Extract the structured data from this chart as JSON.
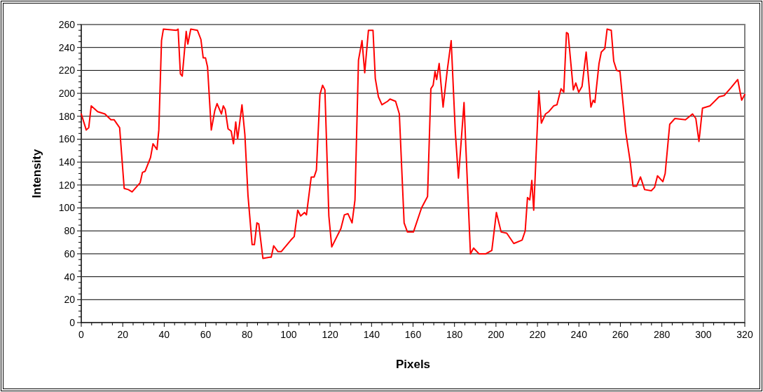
{
  "chart_data": {
    "type": "line",
    "xlabel": "Pixels",
    "ylabel": "Intensity",
    "series": [
      {
        "color": "#ff0000",
        "x": [
          0,
          2.4,
          3.6,
          4.8,
          7.9,
          11.4,
          14.3,
          15.8,
          18.5,
          20.7,
          22.7,
          24.5,
          28.4,
          29.5,
          30.8,
          33.4,
          34.6,
          36.5,
          37.4,
          38.7,
          39.6,
          45.9,
          46.7,
          47.8,
          48.7,
          50.6,
          51.4,
          52.8,
          56,
          57.7,
          58.8,
          59.9,
          60.9,
          62.7,
          64.4,
          65.5,
          67.6,
          68.5,
          69.4,
          70.8,
          72.3,
          73.4,
          74.5,
          75.4,
          77.5,
          78.9,
          80.4,
          82.4,
          83.5,
          84.7,
          85.6,
          87.6,
          90.9,
          91.6,
          92.8,
          94.8,
          96.5,
          101.1,
          102.7,
          104.4,
          105.8,
          107.7,
          108.6,
          110.9,
          112.3,
          113.4,
          115.1,
          116.4,
          117.5,
          119.4,
          120.8,
          125.2,
          126.9,
          128.6,
          130.6,
          132,
          133.7,
          135.4,
          136.7,
          138.5,
          140.7,
          141.8,
          143.3,
          145,
          147.7,
          148.9,
          151.6,
          153.4,
          155.7,
          157.3,
          160.2,
          164.1,
          167,
          168.6,
          169.7,
          170.6,
          171.4,
          172.6,
          174.5,
          176.5,
          178.4,
          180.4,
          181.9,
          183.3,
          184.6,
          185.5,
          187.7,
          189.2,
          191.8,
          195.1,
          198,
          200.2,
          202.5,
          205.2,
          208.6,
          212.6,
          214.1,
          215.2,
          216.3,
          217.3,
          218.2,
          220.7,
          221.9,
          223.9,
          225.5,
          227.8,
          229.4,
          231.4,
          232.7,
          234,
          234.8,
          237.3,
          238.5,
          239.9,
          241.5,
          243.5,
          245.8,
          246.9,
          247.7,
          249.7,
          250.8,
          252.5,
          253.6,
          255.6,
          256.8,
          258.2,
          259.8,
          262.6,
          264.7,
          266.1,
          267.8,
          269.7,
          271.7,
          274.9,
          276.5,
          277.9,
          280.5,
          281.6,
          283.8,
          286.3,
          291.4,
          294.8,
          296.4,
          297.9,
          299.6,
          303.2,
          307.6,
          310,
          313.4,
          316.6,
          318.5,
          320
        ],
        "values": [
          182,
          168,
          170,
          189,
          184,
          182,
          177,
          177,
          170,
          117,
          116,
          114,
          122,
          131,
          132,
          144,
          156,
          151,
          168,
          246,
          256,
          255,
          256,
          217,
          215,
          254,
          243,
          256,
          255,
          247,
          231,
          231,
          223,
          168,
          185,
          191,
          182,
          189,
          186,
          169,
          167,
          156,
          175,
          160,
          190,
          164,
          111,
          68,
          68,
          87,
          86,
          56,
          57,
          57,
          67,
          62,
          62,
          72,
          75,
          98,
          93,
          96,
          94,
          127,
          127,
          133,
          199,
          207,
          203,
          93,
          66,
          82,
          94,
          95,
          87,
          107,
          229,
          246,
          218,
          255,
          255,
          213,
          197,
          190,
          193,
          195,
          193,
          182,
          87,
          79,
          79,
          100,
          110,
          204,
          207,
          219,
          212,
          226,
          188,
          220,
          246,
          166,
          126,
          160,
          192,
          152,
          60,
          65,
          60,
          60,
          63,
          96,
          79,
          78,
          69,
          72,
          80,
          109,
          107,
          124,
          98,
          202,
          174,
          182,
          184,
          189,
          190,
          204,
          201,
          253,
          252,
          203,
          209,
          201,
          206,
          236,
          188,
          194,
          192,
          226,
          236,
          239,
          256,
          255,
          228,
          220,
          219,
          166,
          141,
          119,
          119,
          127,
          116,
          115,
          118,
          128,
          123,
          130,
          173,
          178,
          177,
          182,
          178,
          158,
          187,
          189,
          197,
          198,
          205,
          212,
          194,
          199
        ]
      }
    ],
    "xlim": [
      0,
      320
    ],
    "xticks": [
      0,
      {
        "value": 5,
        "label": null
      },
      {
        "value": 10,
        "label": null
      },
      {
        "value": 15,
        "label": null
      },
      20,
      {
        "value": 25,
        "label": null
      },
      {
        "value": 30,
        "label": null
      },
      {
        "value": 35,
        "label": null
      },
      40,
      {
        "value": 45,
        "label": null
      },
      {
        "value": 50,
        "label": null
      },
      {
        "value": 55,
        "label": null
      },
      60,
      {
        "value": 65,
        "label": null
      },
      {
        "value": 70,
        "label": null
      },
      {
        "value": 75,
        "label": null
      },
      80,
      {
        "value": 85,
        "label": null
      },
      {
        "value": 90,
        "label": null
      },
      {
        "value": 95,
        "label": null
      },
      100,
      {
        "value": 105,
        "label": null
      },
      {
        "value": 110,
        "label": null
      },
      {
        "value": 115,
        "label": null
      },
      120,
      {
        "value": 125,
        "label": null
      },
      {
        "value": 130,
        "label": null
      },
      {
        "value": 135,
        "label": null
      },
      140,
      {
        "value": 145,
        "label": null
      },
      {
        "value": 150,
        "label": null
      },
      {
        "value": 155,
        "label": null
      },
      160,
      {
        "value": 165,
        "label": null
      },
      {
        "value": 170,
        "label": null
      },
      {
        "value": 175,
        "label": null
      },
      180,
      {
        "value": 185,
        "label": null
      },
      {
        "value": 190,
        "label": null
      },
      {
        "value": 195,
        "label": null
      },
      200,
      {
        "value": 205,
        "label": null
      },
      {
        "value": 210,
        "label": null
      },
      {
        "value": 215,
        "label": null
      },
      220,
      {
        "value": 225,
        "label": null
      },
      {
        "value": 230,
        "label": null
      },
      {
        "value": 235,
        "label": null
      },
      240,
      {
        "value": 245,
        "label": null
      },
      {
        "value": 250,
        "label": null
      },
      {
        "value": 255,
        "label": null
      },
      260,
      {
        "value": 265,
        "label": null
      },
      {
        "value": 270,
        "label": null
      },
      {
        "value": 275,
        "label": null
      },
      280,
      {
        "value": 285,
        "label": null
      },
      {
        "value": 290,
        "label": null
      },
      {
        "value": 295,
        "label": null
      },
      300,
      {
        "value": 305,
        "label": null
      },
      {
        "value": 310,
        "label": null
      },
      {
        "value": 315,
        "label": null
      },
      320
    ],
    "ylim": [
      0,
      260
    ],
    "yticks": [
      0,
      {
        "value": 5,
        "label": null
      },
      {
        "value": 10,
        "label": null
      },
      {
        "value": 15,
        "label": null
      },
      20,
      {
        "value": 25,
        "label": null
      },
      {
        "value": 30,
        "label": null
      },
      {
        "value": 35,
        "label": null
      },
      40,
      {
        "value": 45,
        "label": null
      },
      {
        "value": 50,
        "label": null
      },
      {
        "value": 55,
        "label": null
      },
      60,
      {
        "value": 65,
        "label": null
      },
      {
        "value": 70,
        "label": null
      },
      {
        "value": 75,
        "label": null
      },
      80,
      {
        "value": 85,
        "label": null
      },
      {
        "value": 90,
        "label": null
      },
      {
        "value": 95,
        "label": null
      },
      100,
      {
        "value": 105,
        "label": null
      },
      {
        "value": 110,
        "label": null
      },
      {
        "value": 115,
        "label": null
      },
      120,
      {
        "value": 125,
        "label": null
      },
      {
        "value": 130,
        "label": null
      },
      {
        "value": 135,
        "label": null
      },
      140,
      {
        "value": 145,
        "label": null
      },
      {
        "value": 150,
        "label": null
      },
      {
        "value": 155,
        "label": null
      },
      160,
      {
        "value": 165,
        "label": null
      },
      {
        "value": 170,
        "label": null
      },
      {
        "value": 175,
        "label": null
      },
      180,
      {
        "value": 185,
        "label": null
      },
      {
        "value": 190,
        "label": null
      },
      {
        "value": 195,
        "label": null
      },
      200,
      {
        "value": 205,
        "label": null
      },
      {
        "value": 210,
        "label": null
      },
      {
        "value": 215,
        "label": null
      },
      220,
      {
        "value": 225,
        "label": null
      },
      {
        "value": 230,
        "label": null
      },
      {
        "value": 235,
        "label": null
      },
      240,
      {
        "value": 245,
        "label": null
      },
      {
        "value": 250,
        "label": null
      },
      {
        "value": 255,
        "label": null
      },
      260
    ],
    "grid": "y",
    "marker": "none",
    "line_style": "solid"
  }
}
